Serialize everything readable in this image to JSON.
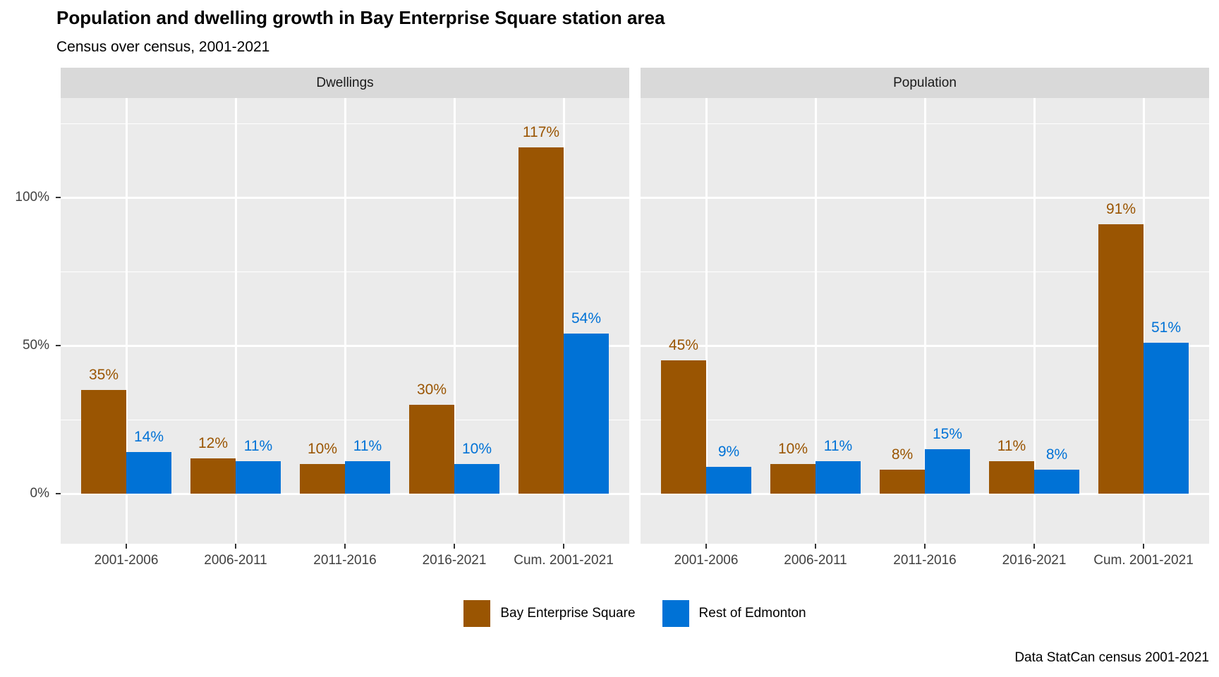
{
  "title": "Population and dwelling growth in Bay Enterprise Square station area",
  "subtitle": "Census over census, 2001-2021",
  "caption": "Data StatCan census 2001-2021",
  "colors": {
    "bay_enterprise_square": "#9A5502",
    "rest_of_edmonton": "#0072D6",
    "panel_background": "#EBEBEB",
    "strip_background": "#D9D9D9",
    "gridline": "#FFFFFF",
    "axis_text": "#404040"
  },
  "legend": {
    "items": [
      {
        "label": "Bay Enterprise Square",
        "color": "#9A5502"
      },
      {
        "label": "Rest of Edmonton",
        "color": "#0072D6"
      }
    ]
  },
  "y_axis": {
    "ticks": [
      {
        "label": "0%",
        "value": 0
      },
      {
        "label": "50%",
        "value": 50
      },
      {
        "label": "100%",
        "value": 100
      }
    ]
  },
  "chart_data": [
    {
      "type": "bar",
      "title": "Dwellings",
      "unit": "%",
      "categories": [
        "2001-2006",
        "2006-2011",
        "2011-2016",
        "2016-2021",
        "Cum. 2001-2021"
      ],
      "series": [
        {
          "name": "Bay Enterprise Square",
          "color": "#9A5502",
          "values": [
            35,
            12,
            10,
            30,
            117
          ]
        },
        {
          "name": "Rest of Edmonton",
          "color": "#0072D6",
          "values": [
            14,
            11,
            11,
            10,
            54
          ]
        }
      ],
      "ylim": [
        0,
        135
      ],
      "grid": true,
      "legend_position": "bottom"
    },
    {
      "type": "bar",
      "title": "Population",
      "unit": "%",
      "categories": [
        "2001-2006",
        "2006-2011",
        "2011-2016",
        "2016-2021",
        "Cum. 2001-2021"
      ],
      "series": [
        {
          "name": "Bay Enterprise Square",
          "color": "#9A5502",
          "values": [
            45,
            10,
            8,
            11,
            91
          ]
        },
        {
          "name": "Rest of Edmonton",
          "color": "#0072D6",
          "values": [
            9,
            11,
            15,
            8,
            51
          ]
        }
      ],
      "ylim": [
        0,
        135
      ],
      "grid": true,
      "legend_position": "bottom"
    }
  ]
}
